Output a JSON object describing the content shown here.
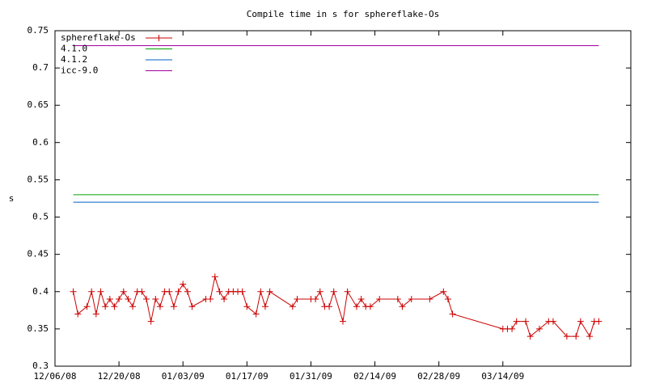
{
  "chart_data": {
    "type": "line",
    "title": "Compile time in s for sphereflake-Os",
    "ylabel": "s",
    "xlim": [
      "12/06/08",
      "04/11/09"
    ],
    "xticks": [
      "12/06/08",
      "12/20/08",
      "01/03/09",
      "01/17/09",
      "01/31/09",
      "02/14/09",
      "02/28/09",
      "03/14/09"
    ],
    "ylim": [
      0.3,
      0.75
    ],
    "yticks": [
      0.3,
      0.35,
      0.4,
      0.45,
      0.5,
      0.55,
      0.6,
      0.65,
      0.7,
      0.75
    ],
    "legend": "top-left",
    "series": [
      {
        "name": "sphereflake-Os",
        "color": "#cc0000",
        "points": true,
        "x": [
          "12/10/08",
          "12/11/08",
          "12/13/08",
          "12/14/08",
          "12/15/08",
          "12/16/08",
          "12/17/08",
          "12/18/08",
          "12/19/08",
          "12/20/08",
          "12/21/08",
          "12/22/08",
          "12/23/08",
          "12/24/08",
          "12/25/08",
          "12/26/08",
          "12/27/08",
          "12/28/08",
          "12/29/08",
          "12/30/08",
          "12/31/08",
          "01/01/09",
          "01/02/09",
          "01/03/09",
          "01/04/09",
          "01/05/09",
          "01/08/09",
          "01/09/09",
          "01/10/09",
          "01/11/09",
          "01/12/09",
          "01/13/09",
          "01/14/09",
          "01/15/09",
          "01/16/09",
          "01/17/09",
          "01/19/09",
          "01/20/09",
          "01/21/09",
          "01/22/09",
          "01/27/09",
          "01/28/09",
          "01/31/09",
          "02/01/09",
          "02/02/09",
          "02/03/09",
          "02/04/09",
          "02/05/09",
          "02/07/09",
          "02/08/09",
          "02/10/09",
          "02/11/09",
          "02/12/09",
          "02/13/09",
          "02/15/09",
          "02/19/09",
          "02/20/09",
          "02/22/09",
          "02/26/09",
          "03/01/09",
          "03/02/09",
          "03/03/09",
          "03/14/09",
          "03/15/09",
          "03/16/09",
          "03/17/09",
          "03/19/09",
          "03/20/09",
          "03/22/09",
          "03/24/09",
          "03/25/09",
          "03/28/09",
          "03/30/09",
          "03/31/09",
          "04/02/09",
          "04/03/09",
          "04/04/09"
        ],
        "values": [
          0.4,
          0.37,
          0.38,
          0.4,
          0.37,
          0.4,
          0.38,
          0.39,
          0.38,
          0.39,
          0.4,
          0.39,
          0.38,
          0.4,
          0.4,
          0.39,
          0.36,
          0.39,
          0.38,
          0.4,
          0.4,
          0.38,
          0.4,
          0.41,
          0.4,
          0.38,
          0.39,
          0.39,
          0.42,
          0.4,
          0.39,
          0.4,
          0.4,
          0.4,
          0.4,
          0.38,
          0.37,
          0.4,
          0.38,
          0.4,
          0.38,
          0.39,
          0.39,
          0.39,
          0.4,
          0.38,
          0.38,
          0.4,
          0.36,
          0.4,
          0.38,
          0.39,
          0.38,
          0.38,
          0.39,
          0.39,
          0.38,
          0.39,
          0.39,
          0.4,
          0.39,
          0.37,
          0.35,
          0.35,
          0.35,
          0.36,
          0.36,
          0.34,
          0.35,
          0.36,
          0.36,
          0.34,
          0.34,
          0.36,
          0.34,
          0.36,
          0.36
        ]
      },
      {
        "name": "4.1.0",
        "color": "#00a000",
        "x": [
          "12/10/08",
          "04/04/09"
        ],
        "values": [
          0.53,
          0.53
        ]
      },
      {
        "name": "4.1.2",
        "color": "#0060c0",
        "x": [
          "12/10/08",
          "04/04/09"
        ],
        "values": [
          0.52,
          0.52
        ]
      },
      {
        "name": "icc-9.0",
        "color": "#a000a0",
        "x": [
          "12/10/08",
          "04/04/09"
        ],
        "values": [
          0.73,
          0.73
        ]
      }
    ]
  }
}
